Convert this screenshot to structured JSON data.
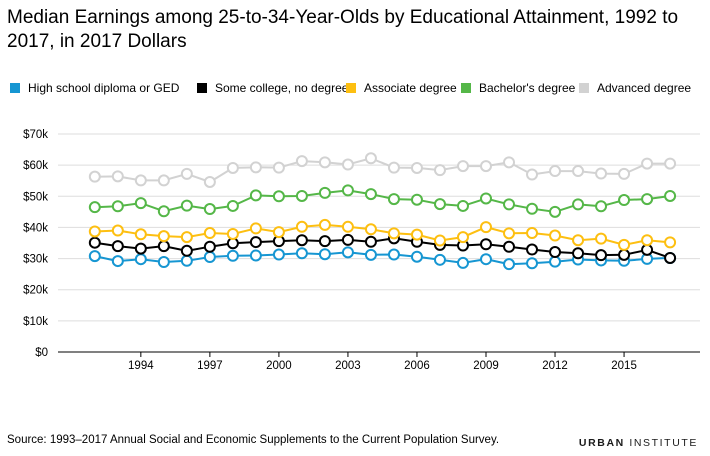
{
  "title": "Median Earnings among 25-to-34-Year-Olds by Educational Attainment, 1992 to 2017, in 2017 Dollars",
  "source": "Source: 1993–2017 Annual Social and Economic Supplements to the Current Population Survey.",
  "brand": {
    "bold": "URBAN",
    "light": "INSTITUTE"
  },
  "chart_data": {
    "type": "line",
    "title": "Median Earnings among 25-to-34-Year-Olds by Educational Attainment, 1992 to 2017, in 2017 Dollars",
    "xlabel": "",
    "ylabel": "",
    "x": [
      1992,
      1993,
      1994,
      1995,
      1996,
      1997,
      1998,
      1999,
      2000,
      2001,
      2002,
      2003,
      2004,
      2005,
      2006,
      2007,
      2008,
      2009,
      2010,
      2011,
      2012,
      2013,
      2014,
      2015,
      2016,
      2017
    ],
    "xlim": [
      1990.4,
      2018.3
    ],
    "x_ticks": [
      1994,
      1997,
      2000,
      2003,
      2006,
      2009,
      2012,
      2015
    ],
    "ylim": [
      0,
      70000
    ],
    "y_ticks": [
      0,
      10000,
      20000,
      30000,
      40000,
      50000,
      60000,
      70000
    ],
    "y_tick_labels": [
      "$0",
      "$10k",
      "$20k",
      "$30k",
      "$40k",
      "$50k",
      "$60k",
      "$70k"
    ],
    "grid": "horizontal",
    "legend_position": "top",
    "series": [
      {
        "name": "High school diploma or GED",
        "color": "#1696d2",
        "values": [
          30800,
          29200,
          29800,
          28900,
          29300,
          30500,
          30900,
          31000,
          31300,
          31700,
          31400,
          32000,
          31200,
          31300,
          30600,
          29600,
          28600,
          29800,
          28200,
          28500,
          29000,
          29700,
          29400,
          29300,
          29900,
          30200
        ]
      },
      {
        "name": "Some college, no degree",
        "color": "#000000",
        "values": [
          35100,
          34000,
          33200,
          34000,
          32500,
          33800,
          34900,
          35300,
          35600,
          35900,
          35600,
          36000,
          35400,
          36500,
          35400,
          34400,
          34200,
          34600,
          33800,
          32900,
          32100,
          31700,
          31100,
          31200,
          32800,
          30200
        ]
      },
      {
        "name": "Associate degree",
        "color": "#fdbf11",
        "values": [
          38700,
          39000,
          37800,
          37200,
          36900,
          38200,
          37900,
          39700,
          38500,
          40200,
          40800,
          40200,
          39400,
          38100,
          37700,
          35800,
          36900,
          40100,
          38100,
          38200,
          37400,
          35900,
          36400,
          34400,
          35900,
          35200
        ]
      },
      {
        "name": "Bachelor's degree",
        "color": "#55b748",
        "values": [
          46500,
          46800,
          47800,
          45200,
          47000,
          45900,
          46900,
          50300,
          50000,
          50100,
          51100,
          51900,
          50700,
          49100,
          48900,
          47500,
          46900,
          49300,
          47400,
          46000,
          45000,
          47400,
          46800,
          48800,
          49100,
          50100
        ]
      },
      {
        "name": "Advanced degree",
        "color": "#d2d2d2",
        "values": [
          56300,
          56400,
          55100,
          55100,
          57200,
          54600,
          59100,
          59300,
          59200,
          61300,
          60900,
          60200,
          62200,
          59200,
          59100,
          58400,
          59700,
          59700,
          60900,
          57000,
          58100,
          58100,
          57300,
          57200,
          60500,
          60500
        ]
      }
    ]
  }
}
